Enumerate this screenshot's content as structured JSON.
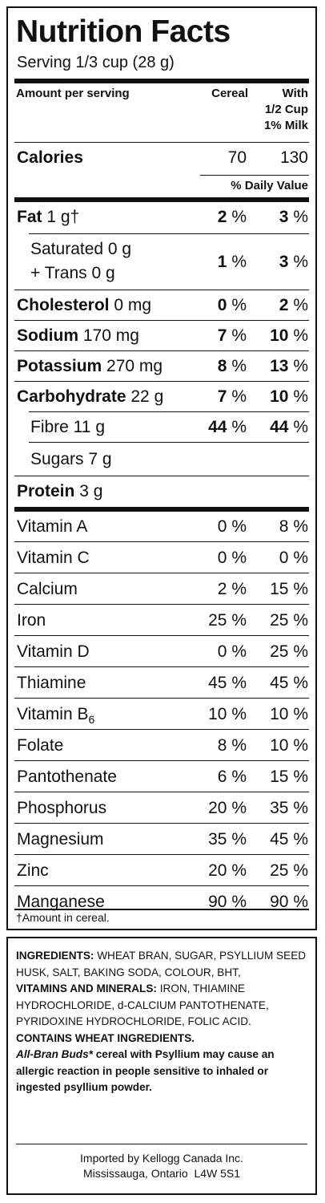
{
  "nutrition": {
    "title": "Nutrition Facts",
    "serving": "Serving 1/3 cup (28 g)",
    "header": {
      "amount": "Amount per serving",
      "cereal": "Cereal",
      "milk_line1": "With",
      "milk_line2": "1/2 Cup",
      "milk_line3": "1% Milk"
    },
    "calories": {
      "label": "Calories",
      "cereal": "70",
      "milk": "130"
    },
    "daily_value": "% Daily Value",
    "fat": {
      "label": "Fat",
      "amount": "1 g†",
      "cereal": "2",
      "milk": "3"
    },
    "saturated": {
      "line1": "Saturated 0 g",
      "line2": "+ Trans 0 g",
      "cereal": "1",
      "milk": "3"
    },
    "cholesterol": {
      "label": "Cholesterol",
      "amount": "0 mg",
      "cereal": "0",
      "milk": "2"
    },
    "sodium": {
      "label": "Sodium",
      "amount": "170 mg",
      "cereal": "7",
      "milk": "10"
    },
    "potassium": {
      "label": "Potassium",
      "amount": "270 mg",
      "cereal": "8",
      "milk": "13"
    },
    "carbohydrate": {
      "label": "Carbohydrate",
      "amount": "22 g",
      "cereal": "7",
      "milk": "10"
    },
    "fibre": {
      "label": "Fibre 11 g",
      "cereal": "44",
      "milk": "44"
    },
    "sugars": {
      "label": "Sugars 7 g"
    },
    "protein": {
      "label": "Protein",
      "amount": "3 g"
    },
    "pct_sign": "%",
    "vitamins": [
      {
        "label": "Vitamin A",
        "cereal": "0",
        "milk": "8"
      },
      {
        "label": "Vitamin C",
        "cereal": "0",
        "milk": "0"
      },
      {
        "label": "Calcium",
        "cereal": "2",
        "milk": "15"
      },
      {
        "label": "Iron",
        "cereal": "25",
        "milk": "25"
      },
      {
        "label": "Vitamin D",
        "cereal": "0",
        "milk": "25"
      },
      {
        "label": "Thiamine",
        "cereal": "45",
        "milk": "45"
      },
      {
        "label": "Vitamin B",
        "sub": "6",
        "cereal": "10",
        "milk": "10"
      },
      {
        "label": "Folate",
        "cereal": "8",
        "milk": "10"
      },
      {
        "label": "Pantothenate",
        "cereal": "6",
        "milk": "15"
      },
      {
        "label": "Phosphorus",
        "cereal": "20",
        "milk": "35"
      },
      {
        "label": "Magnesium",
        "cereal": "35",
        "milk": "45"
      },
      {
        "label": "Zinc",
        "cereal": "20",
        "milk": "25"
      },
      {
        "label": "Manganese",
        "cereal": "90",
        "milk": "90"
      }
    ],
    "footnote": "†Amount in cereal."
  },
  "ingredients": {
    "ingredients_label": "INGREDIENTS:",
    "ingredients_text": "WHEAT BRAN, SUGAR, PSYLLIUM SEED HUSK, SALT, BAKING SODA, COLOUR, BHT,",
    "vitamins_label": "VITAMINS AND MINERALS:",
    "vitamins_text": "IRON, THIAMINE HYDROCHLORIDE, d-CALCIUM PANTOTHENATE, PYRIDOXINE HYDROCHLORIDE, FOLIC ACID.",
    "contains": "CONTAINS WHEAT INGREDIENTS.",
    "brand": "All-Bran Buds*",
    "warning": "cereal with Psyllium may cause an allergic reaction in people sensitive to inhaled or ingested psyllium powder.",
    "imported_line1": "Imported by Kellogg Canada Inc.",
    "imported_line2": "Mississauga, Ontario  L4W 5S1"
  }
}
